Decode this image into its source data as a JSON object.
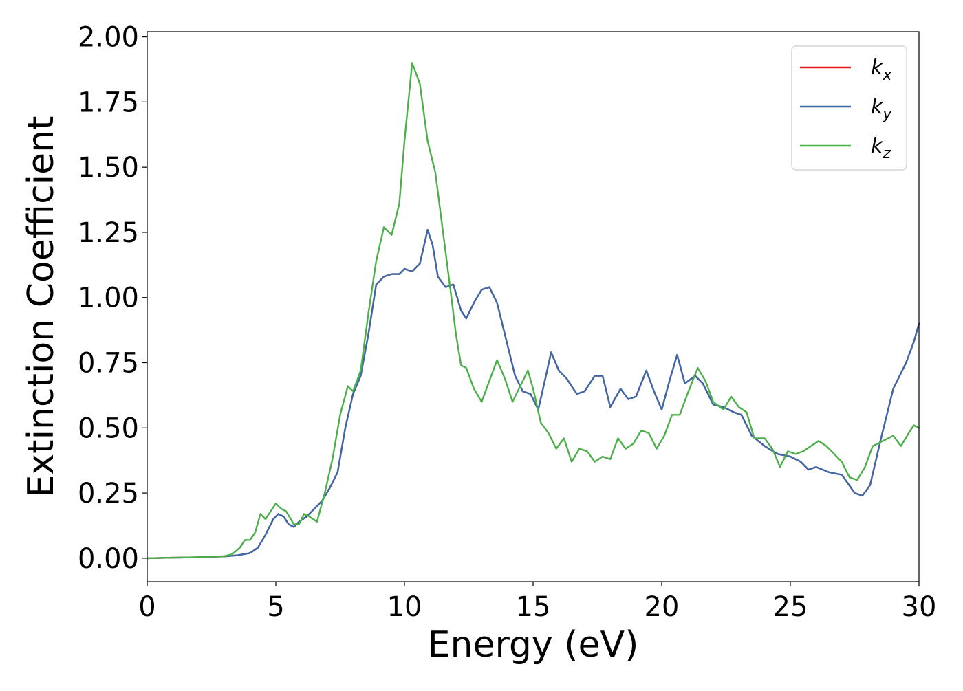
{
  "chart_data": {
    "type": "line",
    "title": "",
    "xlabel": "Energy (eV)",
    "ylabel": "Extinction Coefficient",
    "xlim": [
      0,
      30
    ],
    "ylim": [
      -0.09,
      2.02
    ],
    "xticks": [
      0,
      5,
      10,
      15,
      20,
      25,
      30
    ],
    "yticks": [
      0.0,
      0.25,
      0.5,
      0.75,
      1.0,
      1.25,
      1.5,
      1.75,
      2.0
    ],
    "xtick_labels": [
      "0",
      "5",
      "10",
      "15",
      "20",
      "25",
      "30"
    ],
    "ytick_labels": [
      "0.00",
      "0.25",
      "0.50",
      "0.75",
      "1.00",
      "1.25",
      "1.50",
      "1.75",
      "2.00"
    ],
    "grid": false,
    "legend_position": "top-right",
    "series": [
      {
        "name": "k_x",
        "label_base": "k",
        "label_sub": "x",
        "color": "#e41a1c",
        "points": [
          [
            0,
            0
          ],
          [
            1,
            0.002
          ],
          [
            2,
            0.004
          ],
          [
            3,
            0.007
          ],
          [
            3.5,
            0.011
          ],
          [
            4,
            0.02
          ],
          [
            4.3,
            0.04
          ],
          [
            4.6,
            0.09
          ],
          [
            4.9,
            0.15
          ],
          [
            5.1,
            0.17
          ],
          [
            5.3,
            0.16
          ],
          [
            5.5,
            0.13
          ],
          [
            5.7,
            0.12
          ],
          [
            5.9,
            0.14
          ],
          [
            6.2,
            0.16
          ],
          [
            6.5,
            0.19
          ],
          [
            6.8,
            0.22
          ],
          [
            7.1,
            0.27
          ],
          [
            7.4,
            0.33
          ],
          [
            7.7,
            0.5
          ],
          [
            8.0,
            0.63
          ],
          [
            8.3,
            0.7
          ],
          [
            8.6,
            0.86
          ],
          [
            8.9,
            1.05
          ],
          [
            9.2,
            1.08
          ],
          [
            9.5,
            1.09
          ],
          [
            9.8,
            1.09
          ],
          [
            10.0,
            1.11
          ],
          [
            10.3,
            1.1
          ],
          [
            10.6,
            1.13
          ],
          [
            10.9,
            1.26
          ],
          [
            11.1,
            1.2
          ],
          [
            11.3,
            1.08
          ],
          [
            11.6,
            1.04
          ],
          [
            11.9,
            1.05
          ],
          [
            12.2,
            0.95
          ],
          [
            12.4,
            0.92
          ],
          [
            12.7,
            0.98
          ],
          [
            13.0,
            1.03
          ],
          [
            13.3,
            1.04
          ],
          [
            13.6,
            0.98
          ],
          [
            14.0,
            0.82
          ],
          [
            14.3,
            0.7
          ],
          [
            14.6,
            0.64
          ],
          [
            14.9,
            0.63
          ],
          [
            15.2,
            0.57
          ],
          [
            15.5,
            0.7
          ],
          [
            15.7,
            0.79
          ],
          [
            16.0,
            0.72
          ],
          [
            16.3,
            0.69
          ],
          [
            16.7,
            0.63
          ],
          [
            17.0,
            0.64
          ],
          [
            17.4,
            0.7
          ],
          [
            17.7,
            0.7
          ],
          [
            18.0,
            0.58
          ],
          [
            18.4,
            0.65
          ],
          [
            18.7,
            0.61
          ],
          [
            19.0,
            0.62
          ],
          [
            19.4,
            0.72
          ],
          [
            19.7,
            0.64
          ],
          [
            20.0,
            0.57
          ],
          [
            20.3,
            0.68
          ],
          [
            20.6,
            0.78
          ],
          [
            20.9,
            0.67
          ],
          [
            21.3,
            0.7
          ],
          [
            21.6,
            0.67
          ],
          [
            22.0,
            0.59
          ],
          [
            22.4,
            0.58
          ],
          [
            22.8,
            0.56
          ],
          [
            23.1,
            0.55
          ],
          [
            23.5,
            0.47
          ],
          [
            24.0,
            0.43
          ],
          [
            24.5,
            0.4
          ],
          [
            25.0,
            0.39
          ],
          [
            25.4,
            0.37
          ],
          [
            25.7,
            0.34
          ],
          [
            26.0,
            0.35
          ],
          [
            26.5,
            0.33
          ],
          [
            27.0,
            0.32
          ],
          [
            27.5,
            0.25
          ],
          [
            27.8,
            0.24
          ],
          [
            28.1,
            0.28
          ],
          [
            28.5,
            0.45
          ],
          [
            29.0,
            0.65
          ],
          [
            29.5,
            0.75
          ],
          [
            29.8,
            0.83
          ],
          [
            30.0,
            0.9
          ]
        ]
      },
      {
        "name": "k_y",
        "label_base": "k",
        "label_sub": "y",
        "color": "#3a6ba8",
        "points": [
          [
            0,
            0
          ],
          [
            1,
            0.002
          ],
          [
            2,
            0.004
          ],
          [
            3,
            0.007
          ],
          [
            3.5,
            0.011
          ],
          [
            4,
            0.02
          ],
          [
            4.3,
            0.04
          ],
          [
            4.6,
            0.09
          ],
          [
            4.9,
            0.15
          ],
          [
            5.1,
            0.17
          ],
          [
            5.3,
            0.16
          ],
          [
            5.5,
            0.13
          ],
          [
            5.7,
            0.12
          ],
          [
            5.9,
            0.14
          ],
          [
            6.2,
            0.16
          ],
          [
            6.5,
            0.19
          ],
          [
            6.8,
            0.22
          ],
          [
            7.1,
            0.27
          ],
          [
            7.4,
            0.33
          ],
          [
            7.7,
            0.5
          ],
          [
            8.0,
            0.63
          ],
          [
            8.3,
            0.7
          ],
          [
            8.6,
            0.86
          ],
          [
            8.9,
            1.05
          ],
          [
            9.2,
            1.08
          ],
          [
            9.5,
            1.09
          ],
          [
            9.8,
            1.09
          ],
          [
            10.0,
            1.11
          ],
          [
            10.3,
            1.1
          ],
          [
            10.6,
            1.13
          ],
          [
            10.9,
            1.26
          ],
          [
            11.1,
            1.2
          ],
          [
            11.3,
            1.08
          ],
          [
            11.6,
            1.04
          ],
          [
            11.9,
            1.05
          ],
          [
            12.2,
            0.95
          ],
          [
            12.4,
            0.92
          ],
          [
            12.7,
            0.98
          ],
          [
            13.0,
            1.03
          ],
          [
            13.3,
            1.04
          ],
          [
            13.6,
            0.98
          ],
          [
            14.0,
            0.82
          ],
          [
            14.3,
            0.7
          ],
          [
            14.6,
            0.64
          ],
          [
            14.9,
            0.63
          ],
          [
            15.2,
            0.57
          ],
          [
            15.5,
            0.7
          ],
          [
            15.7,
            0.79
          ],
          [
            16.0,
            0.72
          ],
          [
            16.3,
            0.69
          ],
          [
            16.7,
            0.63
          ],
          [
            17.0,
            0.64
          ],
          [
            17.4,
            0.7
          ],
          [
            17.7,
            0.7
          ],
          [
            18.0,
            0.58
          ],
          [
            18.4,
            0.65
          ],
          [
            18.7,
            0.61
          ],
          [
            19.0,
            0.62
          ],
          [
            19.4,
            0.72
          ],
          [
            19.7,
            0.64
          ],
          [
            20.0,
            0.57
          ],
          [
            20.3,
            0.68
          ],
          [
            20.6,
            0.78
          ],
          [
            20.9,
            0.67
          ],
          [
            21.3,
            0.7
          ],
          [
            21.6,
            0.67
          ],
          [
            22.0,
            0.59
          ],
          [
            22.4,
            0.58
          ],
          [
            22.8,
            0.56
          ],
          [
            23.1,
            0.55
          ],
          [
            23.5,
            0.47
          ],
          [
            24.0,
            0.43
          ],
          [
            24.5,
            0.4
          ],
          [
            25.0,
            0.39
          ],
          [
            25.4,
            0.37
          ],
          [
            25.7,
            0.34
          ],
          [
            26.0,
            0.35
          ],
          [
            26.5,
            0.33
          ],
          [
            27.0,
            0.32
          ],
          [
            27.5,
            0.25
          ],
          [
            27.8,
            0.24
          ],
          [
            28.1,
            0.28
          ],
          [
            28.5,
            0.45
          ],
          [
            29.0,
            0.65
          ],
          [
            29.5,
            0.75
          ],
          [
            29.8,
            0.83
          ],
          [
            30.0,
            0.9
          ]
        ]
      },
      {
        "name": "k_z",
        "label_base": "k",
        "label_sub": "z",
        "color": "#4daf4a",
        "points": [
          [
            0,
            0
          ],
          [
            1,
            0.002
          ],
          [
            2,
            0.004
          ],
          [
            3,
            0.008
          ],
          [
            3.3,
            0.015
          ],
          [
            3.6,
            0.04
          ],
          [
            3.8,
            0.07
          ],
          [
            4.0,
            0.07
          ],
          [
            4.2,
            0.1
          ],
          [
            4.4,
            0.17
          ],
          [
            4.6,
            0.15
          ],
          [
            4.8,
            0.18
          ],
          [
            5.0,
            0.21
          ],
          [
            5.2,
            0.19
          ],
          [
            5.4,
            0.18
          ],
          [
            5.7,
            0.13
          ],
          [
            5.9,
            0.13
          ],
          [
            6.1,
            0.17
          ],
          [
            6.3,
            0.16
          ],
          [
            6.6,
            0.14
          ],
          [
            6.9,
            0.25
          ],
          [
            7.2,
            0.38
          ],
          [
            7.5,
            0.55
          ],
          [
            7.8,
            0.66
          ],
          [
            8.0,
            0.64
          ],
          [
            8.3,
            0.72
          ],
          [
            8.6,
            0.94
          ],
          [
            8.9,
            1.14
          ],
          [
            9.2,
            1.27
          ],
          [
            9.5,
            1.24
          ],
          [
            9.8,
            1.36
          ],
          [
            10.0,
            1.6
          ],
          [
            10.3,
            1.9
          ],
          [
            10.6,
            1.82
          ],
          [
            10.9,
            1.6
          ],
          [
            11.2,
            1.48
          ],
          [
            11.5,
            1.25
          ],
          [
            11.8,
            1.02
          ],
          [
            12.0,
            0.86
          ],
          [
            12.2,
            0.74
          ],
          [
            12.4,
            0.73
          ],
          [
            12.7,
            0.65
          ],
          [
            13.0,
            0.6
          ],
          [
            13.3,
            0.68
          ],
          [
            13.6,
            0.76
          ],
          [
            13.9,
            0.69
          ],
          [
            14.2,
            0.6
          ],
          [
            14.5,
            0.66
          ],
          [
            14.8,
            0.72
          ],
          [
            15.0,
            0.65
          ],
          [
            15.3,
            0.52
          ],
          [
            15.6,
            0.48
          ],
          [
            15.9,
            0.42
          ],
          [
            16.2,
            0.46
          ],
          [
            16.5,
            0.37
          ],
          [
            16.8,
            0.42
          ],
          [
            17.1,
            0.41
          ],
          [
            17.4,
            0.37
          ],
          [
            17.7,
            0.39
          ],
          [
            18.0,
            0.38
          ],
          [
            18.3,
            0.46
          ],
          [
            18.6,
            0.42
          ],
          [
            18.9,
            0.44
          ],
          [
            19.2,
            0.49
          ],
          [
            19.5,
            0.48
          ],
          [
            19.8,
            0.42
          ],
          [
            20.1,
            0.47
          ],
          [
            20.4,
            0.55
          ],
          [
            20.7,
            0.55
          ],
          [
            21.0,
            0.63
          ],
          [
            21.4,
            0.73
          ],
          [
            21.7,
            0.68
          ],
          [
            22.0,
            0.6
          ],
          [
            22.4,
            0.57
          ],
          [
            22.7,
            0.62
          ],
          [
            23.0,
            0.58
          ],
          [
            23.3,
            0.56
          ],
          [
            23.6,
            0.46
          ],
          [
            24.0,
            0.46
          ],
          [
            24.3,
            0.42
          ],
          [
            24.6,
            0.35
          ],
          [
            24.9,
            0.41
          ],
          [
            25.2,
            0.4
          ],
          [
            25.5,
            0.41
          ],
          [
            25.8,
            0.43
          ],
          [
            26.1,
            0.45
          ],
          [
            26.4,
            0.43
          ],
          [
            26.7,
            0.4
          ],
          [
            27.0,
            0.37
          ],
          [
            27.3,
            0.31
          ],
          [
            27.6,
            0.3
          ],
          [
            27.9,
            0.35
          ],
          [
            28.2,
            0.43
          ],
          [
            28.6,
            0.45
          ],
          [
            29.0,
            0.47
          ],
          [
            29.3,
            0.43
          ],
          [
            29.6,
            0.48
          ],
          [
            29.8,
            0.51
          ],
          [
            30.0,
            0.5
          ]
        ]
      }
    ]
  }
}
